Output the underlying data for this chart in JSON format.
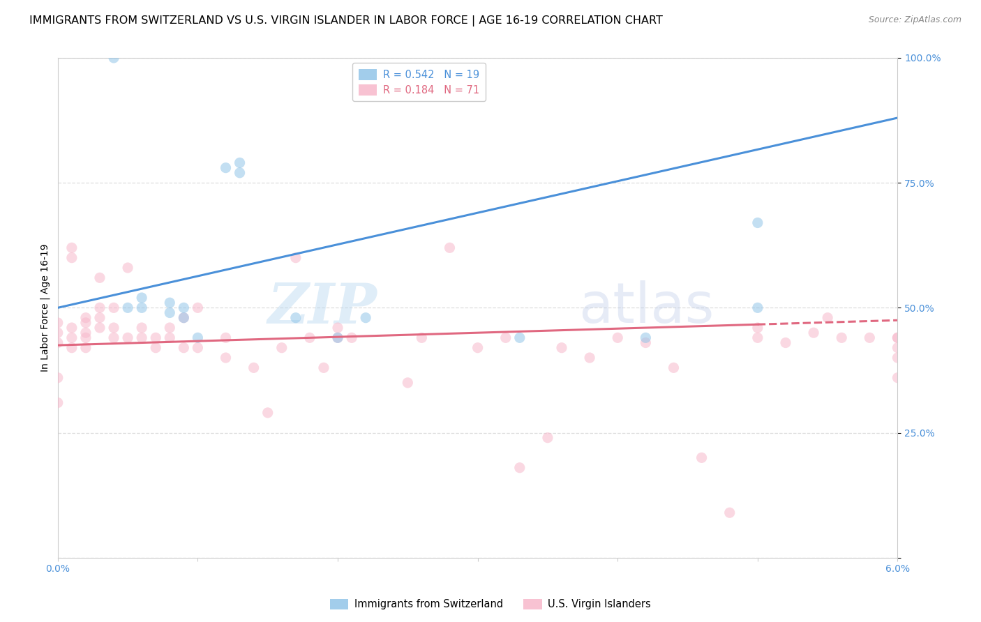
{
  "title": "IMMIGRANTS FROM SWITZERLAND VS U.S. VIRGIN ISLANDER IN LABOR FORCE | AGE 16-19 CORRELATION CHART",
  "source": "Source: ZipAtlas.com",
  "ylabel": "In Labor Force | Age 16-19",
  "x_min": 0.0,
  "x_max": 0.06,
  "y_min": 0.0,
  "y_max": 1.0,
  "x_ticks": [
    0.0,
    0.01,
    0.02,
    0.03,
    0.04,
    0.05,
    0.06
  ],
  "x_tick_labels": [
    "0.0%",
    "",
    "",
    "",
    "",
    "",
    "6.0%"
  ],
  "y_ticks": [
    0.0,
    0.25,
    0.5,
    0.75,
    1.0
  ],
  "y_tick_labels": [
    "",
    "25.0%",
    "50.0%",
    "75.0%",
    "100.0%"
  ],
  "swiss_color": "#92c5e8",
  "virgin_color": "#f7b8cb",
  "swiss_line_color": "#4a90d9",
  "virgin_line_color": "#e06880",
  "swiss_R": 0.542,
  "swiss_N": 19,
  "virgin_R": 0.184,
  "virgin_N": 71,
  "swiss_scatter_x": [
    0.004,
    0.005,
    0.006,
    0.006,
    0.008,
    0.008,
    0.009,
    0.009,
    0.01,
    0.012,
    0.013,
    0.013,
    0.017,
    0.02,
    0.022,
    0.033,
    0.042,
    0.05,
    0.05
  ],
  "swiss_scatter_y": [
    1.0,
    0.5,
    0.5,
    0.52,
    0.49,
    0.51,
    0.48,
    0.5,
    0.44,
    0.78,
    0.79,
    0.77,
    0.48,
    0.44,
    0.48,
    0.44,
    0.44,
    0.67,
    0.5
  ],
  "virgin_scatter_x": [
    0.0,
    0.0,
    0.0,
    0.0,
    0.0,
    0.001,
    0.001,
    0.001,
    0.001,
    0.001,
    0.002,
    0.002,
    0.002,
    0.002,
    0.002,
    0.003,
    0.003,
    0.003,
    0.003,
    0.004,
    0.004,
    0.004,
    0.005,
    0.005,
    0.006,
    0.006,
    0.007,
    0.007,
    0.008,
    0.008,
    0.009,
    0.009,
    0.01,
    0.01,
    0.012,
    0.012,
    0.014,
    0.015,
    0.016,
    0.017,
    0.018,
    0.019,
    0.02,
    0.02,
    0.021,
    0.025,
    0.026,
    0.028,
    0.03,
    0.032,
    0.033,
    0.035,
    0.036,
    0.038,
    0.04,
    0.042,
    0.044,
    0.046,
    0.048,
    0.05,
    0.05,
    0.052,
    0.054,
    0.055,
    0.056,
    0.058,
    0.06,
    0.06,
    0.06,
    0.06,
    0.06
  ],
  "virgin_scatter_y": [
    0.31,
    0.36,
    0.43,
    0.45,
    0.47,
    0.62,
    0.6,
    0.46,
    0.44,
    0.42,
    0.48,
    0.47,
    0.45,
    0.44,
    0.42,
    0.56,
    0.5,
    0.48,
    0.46,
    0.5,
    0.46,
    0.44,
    0.58,
    0.44,
    0.46,
    0.44,
    0.44,
    0.42,
    0.46,
    0.44,
    0.48,
    0.42,
    0.5,
    0.42,
    0.44,
    0.4,
    0.38,
    0.29,
    0.42,
    0.6,
    0.44,
    0.38,
    0.44,
    0.46,
    0.44,
    0.35,
    0.44,
    0.62,
    0.42,
    0.44,
    0.18,
    0.24,
    0.42,
    0.4,
    0.44,
    0.43,
    0.38,
    0.2,
    0.09,
    0.44,
    0.46,
    0.43,
    0.45,
    0.48,
    0.44,
    0.44,
    0.44,
    0.4,
    0.36,
    0.42,
    0.44
  ],
  "swiss_trend_x": [
    0.0,
    0.06
  ],
  "swiss_trend_y": [
    0.5,
    0.88
  ],
  "virgin_trend_x": [
    0.0,
    0.06
  ],
  "virgin_trend_y": [
    0.425,
    0.475
  ],
  "watermark_zip": "ZIP",
  "watermark_atlas": "atlas",
  "background_color": "#ffffff",
  "grid_color": "#dddddd",
  "tick_color": "#4a90d9",
  "axis_color": "#cccccc",
  "title_fontsize": 11.5,
  "source_fontsize": 9,
  "ylabel_fontsize": 10,
  "legend_fontsize": 10.5,
  "tick_fontsize": 10,
  "marker_size": 120,
  "marker_alpha": 0.55,
  "line_width": 2.2
}
